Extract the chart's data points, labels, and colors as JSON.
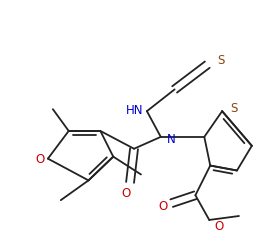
{
  "bg_color": "#ffffff",
  "line_color": "#222222",
  "lw": 1.3,
  "figsize": [
    2.74,
    2.53
  ],
  "dpi": 100,
  "xlim": [
    0,
    274
  ],
  "ylim": [
    0,
    253
  ]
}
